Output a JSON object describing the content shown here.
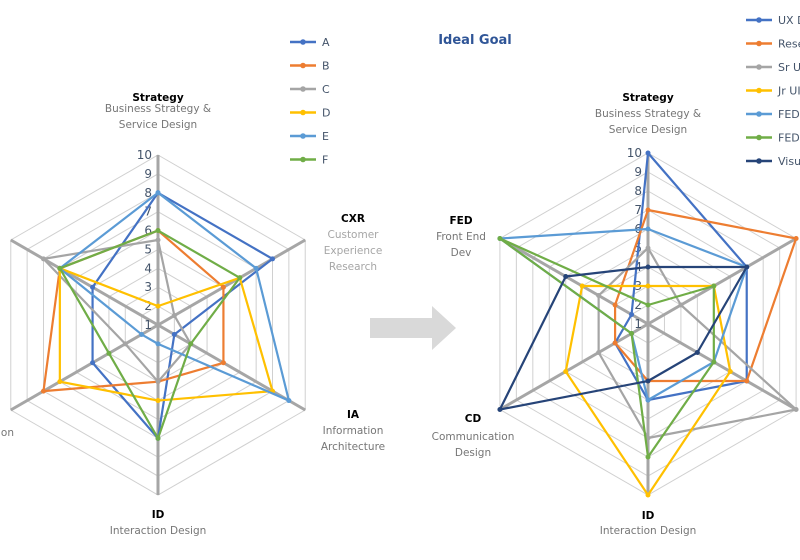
{
  "arrow_icon": "right-arrow",
  "chart_data": [
    {
      "type": "radar",
      "title": "",
      "axis_range": [
        1,
        10
      ],
      "ticks": [
        "1",
        "2",
        "3",
        "4",
        "5",
        "6",
        "7",
        "8",
        "9",
        "10"
      ],
      "grid": true,
      "legend_position": "top-right",
      "axes": [
        {
          "title": "Strategy",
          "subtitle": "Business Strategy & Service Design"
        },
        {
          "title": "CXR",
          "subtitle": "Customer Experience Research"
        },
        {
          "title": "IA",
          "subtitle": "Information Architecture"
        },
        {
          "title": "ID",
          "subtitle": "Interaction Design"
        },
        {
          "title": "",
          "subtitle": "...on"
        },
        {
          "title": "",
          "subtitle": ""
        }
      ],
      "series": [
        {
          "name": "A",
          "color": "#4472c4",
          "values": [
            8,
            8,
            2,
            7,
            5,
            5
          ]
        },
        {
          "name": "B",
          "color": "#ed7d31",
          "values": [
            6,
            5,
            5,
            4,
            8,
            7
          ]
        },
        {
          "name": "C",
          "color": "#a5a5a5",
          "values": [
            5.5,
            2,
            3,
            4,
            3,
            8
          ]
        },
        {
          "name": "D",
          "color": "#ffc000",
          "values": [
            2,
            6,
            8,
            5,
            7,
            7
          ]
        },
        {
          "name": "E",
          "color": "#5b9bd5",
          "values": [
            8,
            7,
            9,
            2,
            2,
            7
          ]
        },
        {
          "name": "F",
          "color": "#70ad47",
          "values": [
            6,
            6,
            3,
            7,
            4,
            7
          ]
        }
      ]
    },
    {
      "type": "radar",
      "title": "Ideal Goal",
      "axis_range": [
        1,
        10
      ],
      "ticks": [
        "1",
        "2",
        "3",
        "4",
        "5",
        "6",
        "7",
        "8",
        "9",
        "10"
      ],
      "grid": true,
      "legend_position": "top-right",
      "axes": [
        {
          "title": "Strategy",
          "subtitle": "Business Strategy & Service Design"
        },
        {
          "title": "",
          "subtitle": ""
        },
        {
          "title": "",
          "subtitle": ""
        },
        {
          "title": "ID",
          "subtitle": "Interaction Design"
        },
        {
          "title": "CD",
          "subtitle": "Communication Design"
        },
        {
          "title": "FED",
          "subtitle": "Front End Dev"
        }
      ],
      "series": [
        {
          "name": "UX D",
          "color": "#4472c4",
          "values": [
            10,
            7,
            7,
            5,
            3,
            2
          ]
        },
        {
          "name": "Resea",
          "color": "#ed7d31",
          "values": [
            7,
            10,
            7,
            4,
            3,
            3
          ]
        },
        {
          "name": "Sr UX",
          "color": "#a5a5a5",
          "values": [
            5,
            3,
            10,
            7,
            4,
            4
          ]
        },
        {
          "name": "Jr UI",
          "color": "#ffc000",
          "values": [
            3,
            5,
            6,
            10,
            6,
            5
          ]
        },
        {
          "name": "FED L",
          "color": "#5b9bd5",
          "values": [
            6,
            7,
            5,
            5,
            2,
            10
          ]
        },
        {
          "name": "FEDs",
          "color": "#70ad47",
          "values": [
            2,
            5,
            5,
            8,
            2,
            10
          ]
        },
        {
          "name": "Visua",
          "color": "#264478",
          "values": [
            4,
            7,
            4,
            4,
            10,
            6
          ]
        }
      ]
    }
  ]
}
